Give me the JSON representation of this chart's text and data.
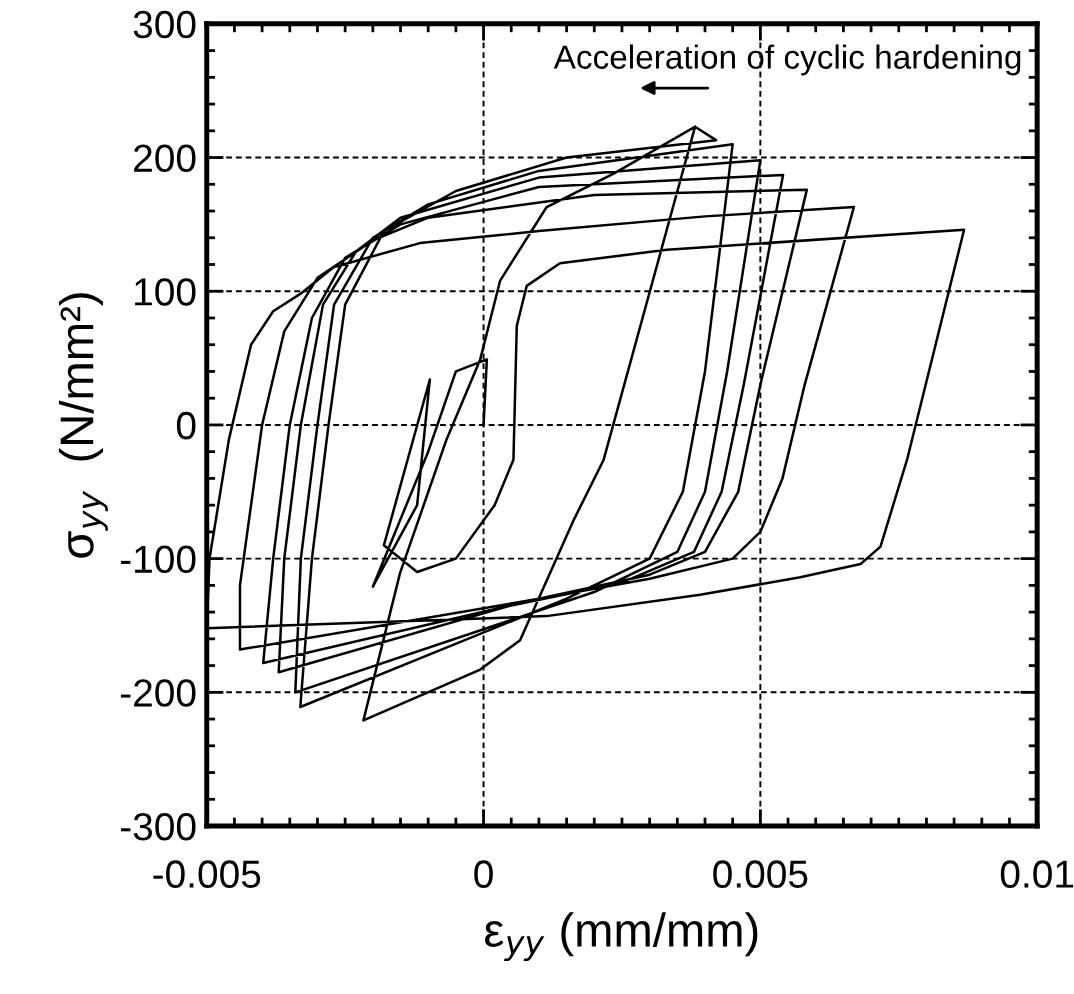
{
  "chart_data": {
    "type": "line",
    "xlabel": "ε$_{yy}$ (mm/mm)",
    "ylabel": "σ$_{yy}$  (N/mm²)",
    "annotations": [
      "Acceleration of cyclic hardening"
    ],
    "xlim": [
      -0.005,
      0.01
    ],
    "xticks": [
      -0.005,
      0,
      0.005,
      0.01
    ],
    "ylim": [
      -300,
      300
    ],
    "yticks": [
      -300,
      -200,
      -100,
      0,
      100,
      200,
      300
    ],
    "grid": true,
    "legend": false,
    "marker": "none",
    "line_style": "solid",
    "series": [
      {
        "color": "#000000",
        "x": [
          0.0,
          6e-05,
          -0.0005,
          -0.001,
          -0.002,
          -0.0012,
          -0.00097,
          -0.0018,
          -0.0012,
          -0.0005,
          0.0002,
          0.00054,
          0.0006,
          0.00078,
          0.00138,
          0.00331,
          0.00868,
          0.00765,
          0.00717,
          0.00681,
          0.00572,
          0.00391,
          0.00114,
          -0.005,
          -0.00495,
          -0.0046,
          -0.0042,
          -0.0038,
          -0.00331,
          -0.00271,
          -0.00115,
          0.001,
          0.004,
          0.00669,
          0.0058,
          0.0054,
          0.005,
          0.0045,
          0.003,
          0.001,
          -0.0044,
          -0.0044,
          -0.004,
          -0.0036,
          -0.003,
          -0.002,
          -0.001,
          0.002,
          0.00584,
          0.005,
          0.0046,
          0.004,
          0.003,
          0.001,
          -0.00398,
          -0.0038,
          -0.0035,
          -0.0031,
          -0.0025,
          -0.0015,
          0.001,
          0.00541,
          0.0047,
          0.0043,
          0.0038,
          0.0025,
          0.0005,
          -0.0037,
          -0.0036,
          -0.0033,
          -0.0029,
          -0.0023,
          -0.0015,
          0.001,
          0.005,
          0.0044,
          0.004,
          0.0035,
          0.002,
          -0.0034,
          -0.0033,
          -0.003,
          -0.0027,
          -0.002,
          -0.001,
          0.001,
          0.0045,
          0.004,
          0.0036,
          0.003,
          0.0015,
          -0.00331,
          -0.0031,
          -0.0028,
          -0.0025,
          -0.0018,
          -0.0005,
          0.0015,
          0.0042,
          0.00382,
          0.00217,
          0.00163,
          0.00066,
          -6e-05,
          -0.00217,
          -0.00151,
          -0.00067,
          -6e-05,
          0.0003,
          0.00114,
          0.00235,
          0.00382
        ],
        "values": [
          0,
          49,
          40,
          -20,
          -121,
          -60,
          34,
          -90,
          -110,
          -100,
          -60,
          -26,
          74,
          104,
          121,
          131,
          146,
          -26,
          -91,
          -104,
          -114,
          -127,
          -143,
          -152,
          -100,
          -11,
          60,
          85,
          98,
          118,
          136,
          145,
          156,
          163,
          30,
          -40,
          -80,
          -100,
          -115,
          -130,
          -168,
          -120,
          0,
          70,
          110,
          138,
          155,
          172,
          176,
          30,
          -50,
          -95,
          -112,
          -130,
          -178,
          -100,
          0,
          80,
          125,
          150,
          178,
          187,
          30,
          -50,
          -95,
          -118,
          -135,
          -185,
          -100,
          0,
          90,
          130,
          155,
          185,
          198,
          40,
          -50,
          -95,
          -125,
          -200,
          -100,
          0,
          90,
          140,
          165,
          190,
          210,
          40,
          -50,
          -100,
          -130,
          -211,
          -100,
          0,
          90,
          145,
          175,
          200,
          213,
          223,
          -26,
          -71,
          -161,
          -183,
          -221,
          -111,
          -11,
          49,
          108,
          163,
          188,
          223
        ]
      }
    ]
  }
}
